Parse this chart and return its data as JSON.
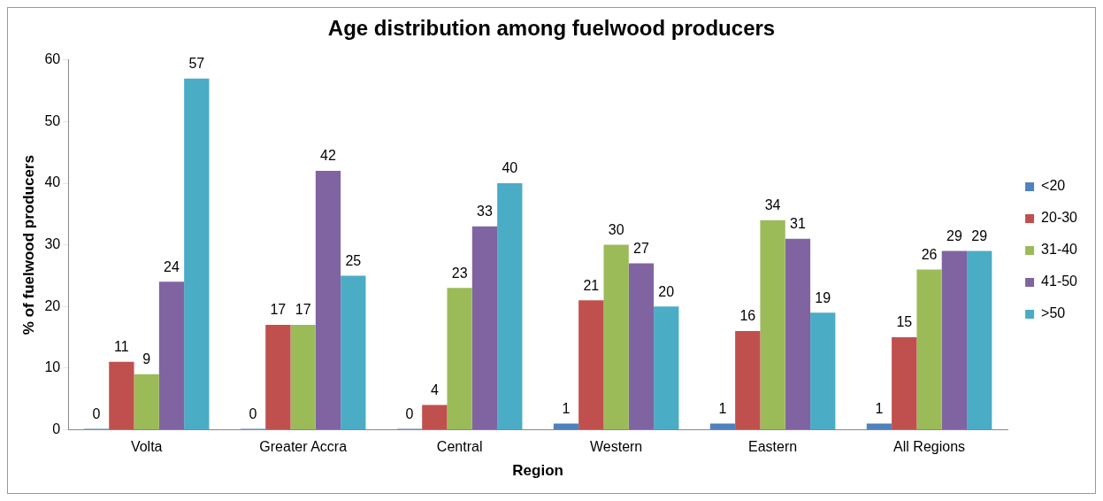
{
  "chart_data": {
    "type": "bar",
    "title": "Age distribution among fuelwood producers",
    "xlabel": "Region",
    "ylabel": "% of fuelwood producers",
    "categories": [
      "Volta",
      "Greater Accra",
      "Central",
      "Western",
      "Eastern",
      "All Regions"
    ],
    "series": [
      {
        "name": "<20",
        "color": "#4f81bd",
        "values": [
          0,
          0,
          0,
          1,
          1,
          1
        ]
      },
      {
        "name": "20-30",
        "color": "#c0504d",
        "values": [
          11,
          17,
          4,
          21,
          16,
          15
        ]
      },
      {
        "name": "31-40",
        "color": "#9bbb59",
        "values": [
          9,
          17,
          23,
          30,
          34,
          26
        ]
      },
      {
        "name": "41-50",
        "color": "#8064a2",
        "values": [
          24,
          42,
          33,
          27,
          31,
          29
        ]
      },
      {
        "name": ">50",
        "color": "#4bacc6",
        "values": [
          57,
          25,
          40,
          20,
          19,
          29
        ]
      }
    ],
    "ylim": [
      0,
      60
    ],
    "yticks": [
      0,
      10,
      20,
      30,
      40,
      50,
      60
    ],
    "grid": false,
    "legend": "right",
    "data_labels": true
  }
}
